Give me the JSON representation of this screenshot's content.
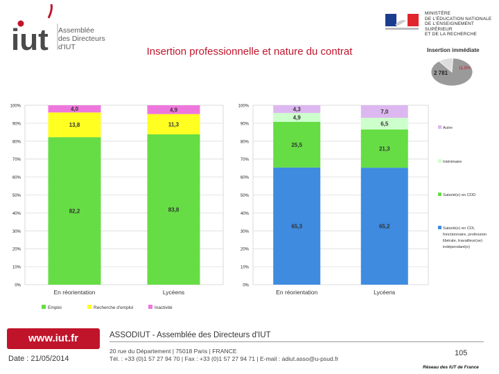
{
  "header": {
    "logo_main": "iut",
    "logo_lines": [
      "Assemblée",
      "des Directeurs",
      "d'IUT"
    ],
    "ministry_lines": [
      "MINISTÈRE",
      "DE L'ÉDUCATION NATIONALE",
      "DE L'ENSEIGNEMENT SUPÉRIEUR",
      "ET DE LA RECHERCHE"
    ],
    "ministry_flag_caption": "Liberté • Égalité • Fraternité / RÉPUBLIQUE FRANÇAISE",
    "title": "Insertion professionnelle et nature du contrat"
  },
  "footer": {
    "website": "www.iut.fr",
    "date": "Date : 21/05/2014",
    "org": "ASSODIUT - Assemblée des Directeurs d'IUT",
    "address_line1": "20 rue du Département | 75018 Paris | FRANCE",
    "address_line2": "Tél. : +33 (0)1 57 27 94 70 | Fax : +33 (0)1 57 27 94 71 | E-mail : adiut.asso@u-psud.fr",
    "page_number": "105",
    "network": "Réseau des IUT de France"
  },
  "colors": {
    "green": "#66dd44",
    "yellow": "#ffff22",
    "pink": "#ee77dd",
    "blue": "#3f8be0",
    "lightgreen": "#ccffcc",
    "lavender": "#ddb8f0",
    "brand_red": "#c0142b"
  },
  "chart_data": [
    {
      "type": "bar",
      "stacked": true,
      "categories": [
        "En réorientation",
        "Lycéens"
      ],
      "yticks": [
        "0%",
        "10%",
        "20%",
        "30%",
        "40%",
        "50%",
        "60%",
        "70%",
        "80%",
        "90%",
        "100%"
      ],
      "ylim": [
        0,
        100
      ],
      "series": [
        {
          "name": "Emploi",
          "color": "#66dd44",
          "values": [
            82.2,
            83.8
          ],
          "labels": [
            "82,2",
            "83,8"
          ]
        },
        {
          "name": "Recherche d'emploi",
          "color": "#ffff22",
          "values": [
            13.8,
            11.3
          ],
          "labels": [
            "13,8",
            "11,3"
          ]
        },
        {
          "name": "Inactivité",
          "color": "#ee77dd",
          "values": [
            4.0,
            4.9
          ],
          "labels": [
            "4,0",
            "4,9"
          ]
        }
      ],
      "legend": "bottom"
    },
    {
      "type": "bar",
      "stacked": true,
      "categories": [
        "En réorientation",
        "Lycéens"
      ],
      "yticks": [
        "0%",
        "10%",
        "20%",
        "30%",
        "40%",
        "50%",
        "60%",
        "70%",
        "80%",
        "90%",
        "100%"
      ],
      "ylim": [
        0,
        100
      ],
      "series": [
        {
          "name": "Salarié(e) en CDI, fonctionnaire, profession libérale, travailleur(se) indépendant(e)",
          "legend_lines": [
            "Salarié(e) en CDI,",
            "fonctionnaire, profession",
            "libérale, travailleur(se)",
            "indépendant(e)"
          ],
          "color": "#3f8be0",
          "values": [
            65.3,
            65.2
          ],
          "labels": [
            "65,3",
            "65,2"
          ]
        },
        {
          "name": "Salarié(e) en CDD",
          "legend_lines": [
            "Salarié(e) en CDD"
          ],
          "color": "#66dd44",
          "values": [
            25.5,
            21.3
          ],
          "labels": [
            "25,5",
            "21,3"
          ]
        },
        {
          "name": "Intérimaire",
          "legend_lines": [
            "Intérimaire"
          ],
          "color": "#ccffcc",
          "values": [
            4.9,
            6.5
          ],
          "labels": [
            "4,9",
            "6,5"
          ]
        },
        {
          "name": "Autre",
          "legend_lines": [
            "Autre"
          ],
          "color": "#ddb8f0",
          "values": [
            4.3,
            7.0
          ],
          "labels": [
            "4,3",
            "7,0"
          ]
        }
      ],
      "legend": "right"
    },
    {
      "type": "pie",
      "title": "Insertion immédiate",
      "slices": [
        {
          "label": "2 781",
          "value": 88.5,
          "color": "#9a9a9a"
        },
        {
          "label": "11,5%",
          "value": 11.5,
          "color": "#dddddd"
        }
      ]
    }
  ]
}
